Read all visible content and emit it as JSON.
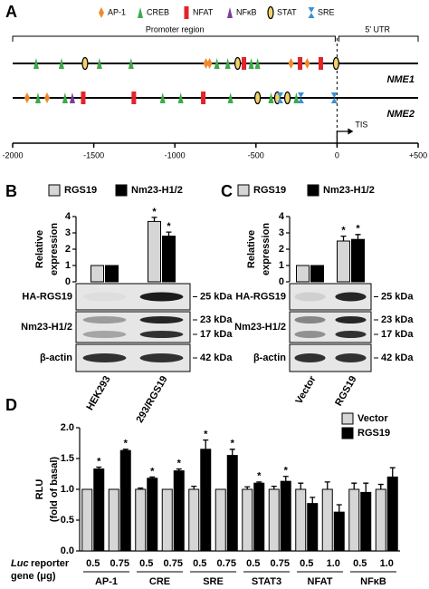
{
  "panel_a": {
    "label": "A",
    "legend": [
      {
        "name": "AP-1",
        "shape": "diamond",
        "color": "#f0892b"
      },
      {
        "name": "CREB",
        "shape": "triangle",
        "color": "#3daa4a"
      },
      {
        "name": "NFAT",
        "shape": "rect",
        "color": "#e3232b"
      },
      {
        "name": "NFκB",
        "shape": "triangle",
        "color": "#7a3e9d"
      },
      {
        "name": "STAT",
        "shape": "ellipse",
        "color": "#f2d36a"
      },
      {
        "name": "SRE",
        "shape": "hourglass",
        "color": "#3a8fd6"
      }
    ],
    "promoter_label": "Promoter region",
    "utr_label": "5' UTR",
    "tis_label": "TIS",
    "xlim": [
      -2000,
      500
    ],
    "xticks": [
      -2000,
      -1500,
      -1000,
      -500,
      0,
      {
        "value": 500,
        "label": "+500"
      }
    ],
    "genes": [
      {
        "name": "NME1",
        "sites": [
          {
            "factor": "CREB",
            "position": -1855
          },
          {
            "factor": "CREB",
            "position": -1699
          },
          {
            "factor": "STAT",
            "position": -1554
          },
          {
            "factor": "CREB",
            "position": -1465
          },
          {
            "factor": "CREB",
            "position": -1270
          },
          {
            "factor": "AP-1",
            "position": -808
          },
          {
            "factor": "AP-1",
            "position": -786
          },
          {
            "factor": "CREB",
            "position": -741
          },
          {
            "factor": "CREB",
            "position": -674
          },
          {
            "factor": "STAT",
            "position": -613
          },
          {
            "factor": "NFAT",
            "position": -574
          },
          {
            "factor": "CREB",
            "position": -529
          },
          {
            "factor": "CREB",
            "position": -490
          },
          {
            "factor": "AP-1",
            "position": -284
          },
          {
            "factor": "NFAT",
            "position": -228
          },
          {
            "factor": "AP-1",
            "position": -184
          },
          {
            "factor": "NFAT",
            "position": -100
          },
          {
            "factor": "STAT",
            "position": -6
          }
        ]
      },
      {
        "name": "NME2",
        "sites": [
          {
            "factor": "AP-1",
            "position": -1911
          },
          {
            "factor": "CREB",
            "position": -1844
          },
          {
            "factor": "AP-1",
            "position": -1788
          },
          {
            "factor": "CREB",
            "position": -1677
          },
          {
            "factor": "NFκB",
            "position": -1632
          },
          {
            "factor": "NFAT",
            "position": -1565
          },
          {
            "factor": "NFAT",
            "position": -1253
          },
          {
            "factor": "CREB",
            "position": -1075
          },
          {
            "factor": "CREB",
            "position": -964
          },
          {
            "factor": "NFAT",
            "position": -825
          },
          {
            "factor": "CREB",
            "position": -657
          },
          {
            "factor": "STAT",
            "position": -490
          },
          {
            "factor": "CREB",
            "position": -407
          },
          {
            "factor": "STAT",
            "position": -368
          },
          {
            "factor": "SRE",
            "position": -351
          },
          {
            "factor": "STAT",
            "position": -306
          },
          {
            "factor": "CREB",
            "position": -251
          },
          {
            "factor": "SRE",
            "position": -223
          },
          {
            "factor": "SRE",
            "position": -17
          }
        ]
      }
    ]
  },
  "chart_data": [
    {
      "type": "bar",
      "panel": "B",
      "ylabel": [
        "Relative",
        "expression"
      ],
      "categories": [
        "HEK293",
        "293/RGS19"
      ],
      "series": [
        {
          "name": "RGS19",
          "color": "#d6d6d6",
          "values": [
            1,
            3.7
          ],
          "errors": [
            null,
            0.25
          ],
          "annotations": [
            null,
            "*"
          ]
        },
        {
          "name": "Nm23-H1/2",
          "color": "#000000",
          "values": [
            1,
            2.8
          ],
          "errors": [
            null,
            0.25
          ],
          "annotations": [
            null,
            "*"
          ]
        }
      ],
      "ylim": [
        0,
        4
      ],
      "yticks": [
        0,
        1,
        2,
        3,
        4
      ],
      "blots": [
        {
          "label": "HA-RGS19",
          "markers": [
            "25 kDa"
          ]
        },
        {
          "label": "Nm23-H1/2",
          "markers": [
            "23 kDa",
            "17 kDa"
          ]
        },
        {
          "label": "β-actin",
          "markers": [
            "42 kDa"
          ]
        }
      ]
    },
    {
      "type": "bar",
      "panel": "C",
      "ylabel": [
        "Relative",
        "expression"
      ],
      "categories": [
        "Vector",
        "RGS19"
      ],
      "series": [
        {
          "name": "RGS19",
          "color": "#d6d6d6",
          "values": [
            1,
            2.5
          ],
          "errors": [
            null,
            0.3
          ],
          "annotations": [
            null,
            "*"
          ]
        },
        {
          "name": "Nm23-H1/2",
          "color": "#000000",
          "values": [
            1,
            2.6
          ],
          "errors": [
            null,
            0.3
          ],
          "annotations": [
            null,
            "*"
          ]
        }
      ],
      "ylim": [
        0,
        4
      ],
      "yticks": [
        0,
        1,
        2,
        3,
        4
      ],
      "blots": [
        {
          "label": "HA-RGS19",
          "markers": [
            "25 kDa"
          ]
        },
        {
          "label": "Nm23-H1/2",
          "markers": [
            "23 kDa",
            "17 kDa"
          ]
        },
        {
          "label": "β-actin",
          "markers": [
            "42 kDa"
          ]
        }
      ]
    },
    {
      "type": "bar",
      "panel": "D",
      "ylabel": [
        "RLU",
        "(fold of basal)"
      ],
      "xlabel": [
        "Luc",
        "reporter",
        "gene (μg)"
      ],
      "categories": [
        "0.5",
        "0.75",
        "0.5",
        "0.75",
        "0.5",
        "0.75",
        "0.5",
        "0.75",
        "0.5",
        "1.0",
        "0.5",
        "1.0"
      ],
      "groups": [
        "AP-1",
        "CRE",
        "SRE",
        "STAT3",
        "NFAT",
        "NFκB"
      ],
      "series": [
        {
          "name": "Vector",
          "color": "#d6d6d6",
          "values": [
            1,
            1,
            1,
            1,
            1,
            1,
            1,
            1,
            1,
            1,
            1,
            1
          ],
          "errors": [
            null,
            null,
            0.02,
            null,
            0.05,
            null,
            0.04,
            0.05,
            0.1,
            0.12,
            0.1,
            0.08
          ],
          "annotations": [
            null,
            null,
            null,
            null,
            null,
            null,
            null,
            null,
            null,
            null,
            null,
            null
          ]
        },
        {
          "name": "RGS19",
          "color": "#000000",
          "values": [
            1.33,
            1.63,
            1.18,
            1.3,
            1.65,
            1.55,
            1.1,
            1.13,
            0.77,
            0.63,
            0.95,
            1.2
          ],
          "errors": [
            0.03,
            0.02,
            0.02,
            0.03,
            0.15,
            0.1,
            0.02,
            0.08,
            0.1,
            0.12,
            0.15,
            0.15
          ],
          "annotations": [
            "*",
            "*",
            "*",
            "*",
            "*",
            "*",
            "*",
            "*",
            null,
            null,
            null,
            null
          ]
        }
      ],
      "ylim": [
        0,
        2
      ],
      "yticks": [
        {
          "value": 0,
          "label": "0.0"
        },
        0.5,
        {
          "value": 1,
          "label": "1.0"
        },
        1.5,
        {
          "value": 2,
          "label": "2.0"
        }
      ]
    }
  ]
}
